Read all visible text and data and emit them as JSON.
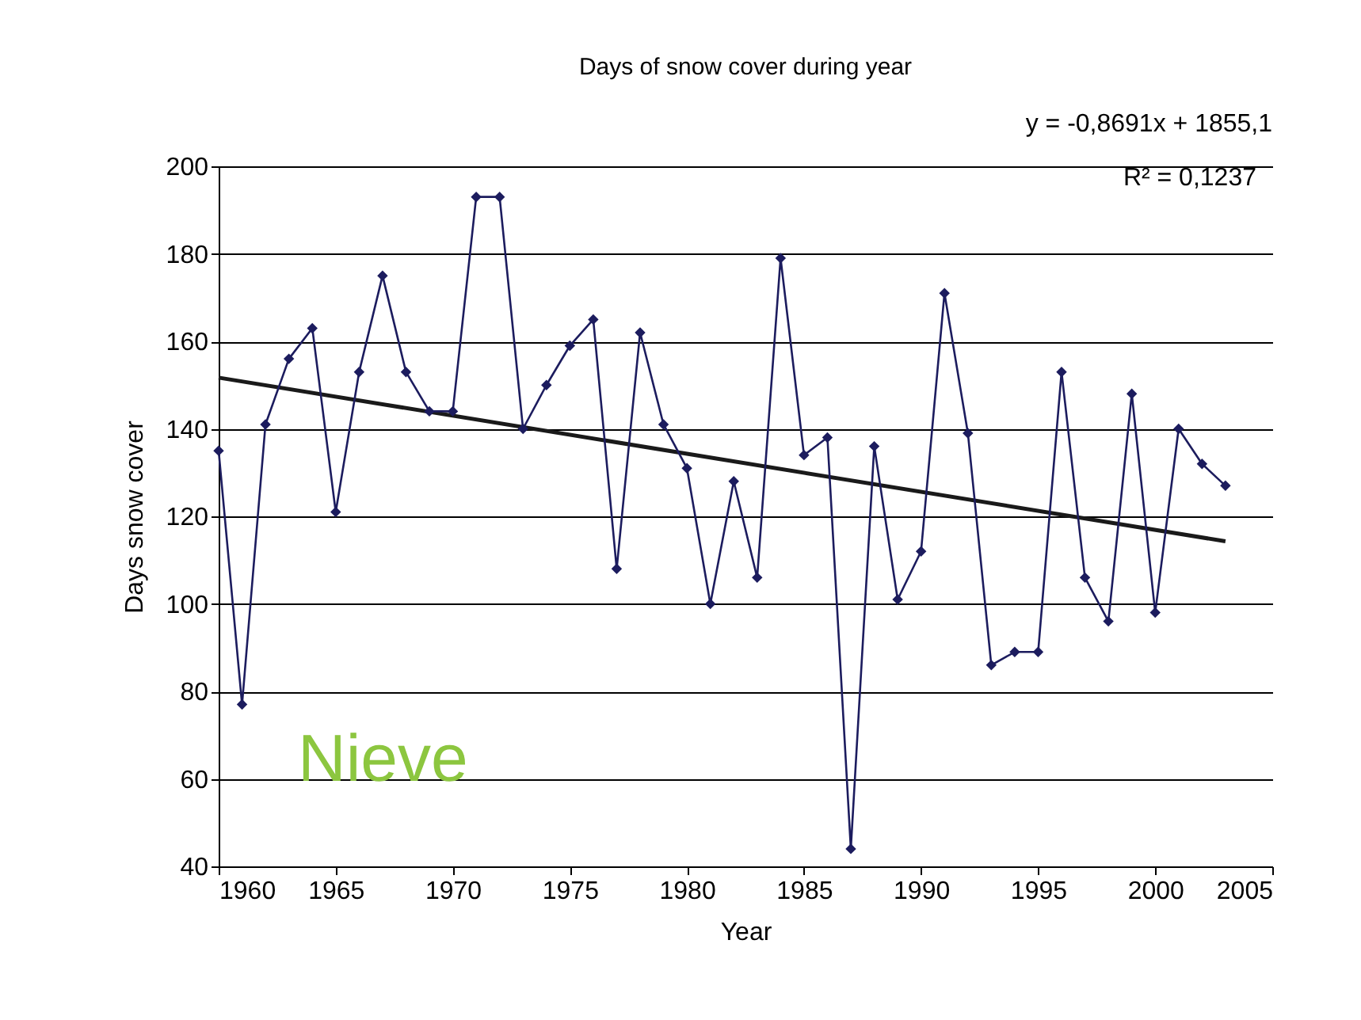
{
  "chart_data": {
    "type": "line",
    "title": "Days of snow cover during year",
    "xlabel": "Year",
    "ylabel": "Days snow cover",
    "annotations": [
      "y = -0,8691x + 1855,1",
      "R² = 0,1237",
      "Nieve"
    ],
    "x": [
      1960,
      1961,
      1962,
      1963,
      1964,
      1965,
      1966,
      1967,
      1968,
      1969,
      1970,
      1971,
      1972,
      1973,
      1974,
      1975,
      1976,
      1977,
      1978,
      1979,
      1980,
      1981,
      1982,
      1983,
      1984,
      1985,
      1986,
      1987,
      1988,
      1989,
      1990,
      1991,
      1992,
      1993,
      1994,
      1995,
      1996,
      1997,
      1998,
      1999,
      2000,
      2001,
      2002,
      2003
    ],
    "series": [
      {
        "color": "#1c1c5e",
        "values": [
          135,
          77,
          141,
          156,
          163,
          121,
          153,
          175,
          153,
          144,
          144,
          193,
          193,
          140,
          150,
          159,
          165,
          108,
          162,
          141,
          131,
          100,
          128,
          106,
          179,
          134,
          138,
          44,
          136,
          101,
          112,
          171,
          139,
          86,
          89,
          89,
          153,
          106,
          96,
          148,
          98,
          140,
          132,
          127
        ]
      },
      {
        "type": "line",
        "color": "#1a1a1a",
        "marker": "none",
        "x": [
          1960,
          2003
        ],
        "values": [
          151.7,
          114.3
        ]
      }
    ],
    "xlim": [
      1960,
      2005
    ],
    "xticks": [
      1960,
      1965,
      1970,
      1975,
      1980,
      1985,
      1990,
      1995,
      2000,
      2005
    ],
    "ylim": [
      40,
      200
    ],
    "yticks": [
      40,
      60,
      80,
      100,
      120,
      140,
      160,
      180,
      200
    ],
    "grid": "y",
    "marker": "diamond",
    "line_style": "solid"
  }
}
